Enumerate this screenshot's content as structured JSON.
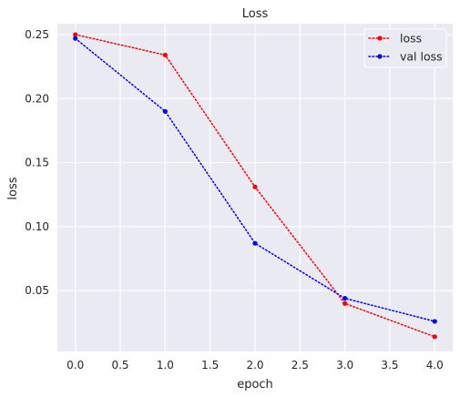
{
  "chart_data": {
    "type": "line",
    "title": "Loss",
    "xlabel": "epoch",
    "ylabel": "loss",
    "xlim": [
      -0.2,
      4.2
    ],
    "ylim": [
      0.0025,
      0.2585
    ],
    "xticks": [
      0.0,
      0.5,
      1.0,
      1.5,
      2.0,
      2.5,
      3.0,
      3.5,
      4.0
    ],
    "yticks": [
      0.05,
      0.1,
      0.15,
      0.2,
      0.25
    ],
    "x": [
      0,
      1,
      2,
      3,
      4
    ],
    "series": [
      {
        "name": "loss",
        "values": [
          0.25,
          0.234,
          0.131,
          0.04,
          0.014
        ],
        "color": "#ff0000",
        "linestyle": "dotted",
        "marker": "dot"
      },
      {
        "name": "val loss",
        "values": [
          0.247,
          0.19,
          0.087,
          0.044,
          0.026
        ],
        "color": "#0000ff",
        "linestyle": "dotted",
        "marker": "dot"
      }
    ],
    "grid": true,
    "background": "#eaeaf2",
    "legend_position": "top-right"
  }
}
